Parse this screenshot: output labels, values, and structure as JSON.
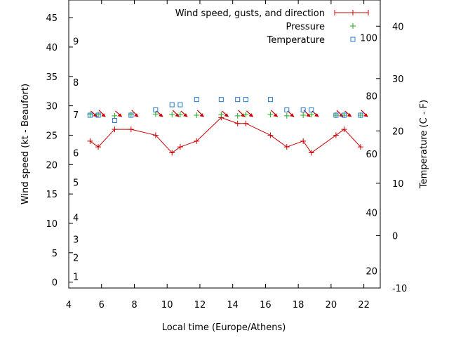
{
  "chart_data": {
    "type": "line",
    "xlabel": "Local time (Europe/Athens)",
    "ylabel": "Wind speed (kt - Beaufort)",
    "y2label": "Temperature (C - F)",
    "xlim": [
      4,
      23
    ],
    "ylim": [
      -1,
      48
    ],
    "y2lim": [
      -10,
      45
    ],
    "grid": false,
    "legend_position": "top-right",
    "x_ticks": [
      4,
      6,
      8,
      10,
      12,
      14,
      16,
      18,
      20,
      22
    ],
    "y_ticks": [
      0,
      5,
      10,
      15,
      20,
      25,
      30,
      35,
      40,
      45
    ],
    "y2_ticks": [
      -10,
      0,
      10,
      20,
      30,
      40
    ],
    "beaufort_labels": [
      {
        "label": "1",
        "kt": 1
      },
      {
        "label": "2",
        "kt": 4.2
      },
      {
        "label": "3",
        "kt": 7.3
      },
      {
        "label": "4",
        "kt": 11
      },
      {
        "label": "5",
        "kt": 17
      },
      {
        "label": "6",
        "kt": 22
      },
      {
        "label": "7",
        "kt": 28.5
      },
      {
        "label": "8",
        "kt": 34
      },
      {
        "label": "9",
        "kt": 41
      }
    ],
    "fahrenheit_labels": [
      {
        "label": "20",
        "c": -6.7
      },
      {
        "label": "40",
        "c": 4.4
      },
      {
        "label": "60",
        "c": 15.6
      },
      {
        "label": "80",
        "c": 26.7
      },
      {
        "label": "100",
        "c": 37.8
      }
    ],
    "series": [
      {
        "name": "Wind speed, gusts, and direction",
        "color": "#cc0000",
        "marker": "plus",
        "x": [
          5.3,
          5.8,
          6.8,
          7.8,
          9.3,
          10.3,
          10.8,
          11.8,
          13.3,
          14.3,
          14.8,
          16.3,
          17.3,
          18.3,
          18.8,
          20.3,
          20.8,
          21.8
        ],
        "y": [
          24,
          23,
          26,
          26,
          25,
          22,
          23,
          24,
          28,
          27,
          27,
          25,
          23,
          24,
          22,
          25,
          26,
          23
        ],
        "direction_deg": [
          225,
          225,
          210,
          210,
          240,
          210,
          215,
          215,
          230,
          230,
          230,
          215,
          215,
          210,
          225,
          220,
          215,
          220
        ]
      },
      {
        "name": "Pressure",
        "color": "#22aa22",
        "marker": "plus",
        "axis": "y",
        "x": [
          5.3,
          5.8,
          6.8,
          7.8,
          9.3,
          10.3,
          10.8,
          11.8,
          13.3,
          14.3,
          14.8,
          16.3,
          17.3,
          18.3,
          18.8,
          20.3,
          20.8,
          21.8
        ],
        "y": [
          28.5,
          28.5,
          28.3,
          28.5,
          28.6,
          28.5,
          28.5,
          28.4,
          28.5,
          28.3,
          28.5,
          28.5,
          28.3,
          28.4,
          28.5,
          28.4,
          28.4,
          28.4
        ]
      },
      {
        "name": "Temperature",
        "color": "#2277cc",
        "marker": "square",
        "axis": "y2",
        "x": [
          5.3,
          5.8,
          6.8,
          7.8,
          9.3,
          10.3,
          10.8,
          11.8,
          13.3,
          14.3,
          14.8,
          16.3,
          17.3,
          18.3,
          18.8,
          20.3,
          20.8,
          21.8
        ],
        "y": [
          23,
          23,
          22,
          23,
          24,
          25,
          25,
          26,
          26,
          26,
          26,
          26,
          24,
          24,
          24,
          23,
          23,
          23
        ]
      }
    ]
  }
}
